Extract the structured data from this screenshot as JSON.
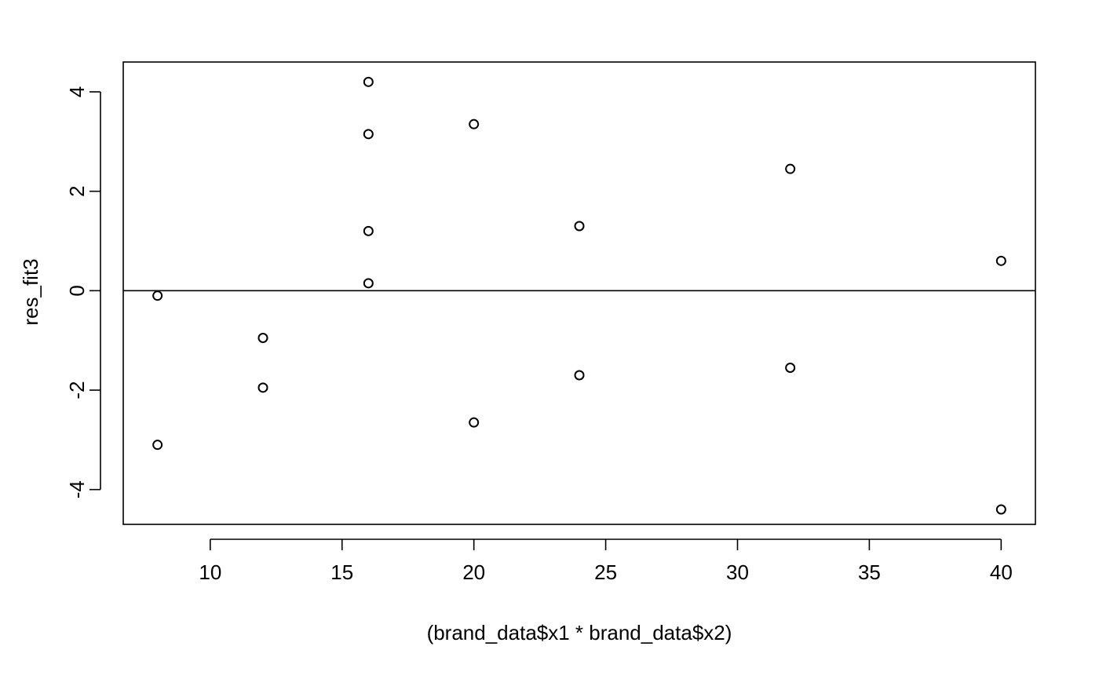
{
  "chart_data": {
    "type": "scatter",
    "title": "",
    "xlabel": "(brand_data$x1 * brand_data$x2)",
    "ylabel": "res_fit3",
    "xlim": [
      6.7,
      41.3
    ],
    "ylim": [
      -4.7,
      4.6
    ],
    "xticks": [
      10,
      15,
      20,
      25,
      30,
      35,
      40
    ],
    "yticks": [
      -4,
      -2,
      0,
      2,
      4
    ],
    "grid": false,
    "reference_line": {
      "orientation": "horizontal",
      "y": 0
    },
    "marker": "open-circle",
    "points": [
      {
        "x": 8,
        "y": -0.1
      },
      {
        "x": 8,
        "y": -3.1
      },
      {
        "x": 12,
        "y": -0.95
      },
      {
        "x": 12,
        "y": -1.95
      },
      {
        "x": 16,
        "y": 4.2
      },
      {
        "x": 16,
        "y": 3.15
      },
      {
        "x": 16,
        "y": 1.2
      },
      {
        "x": 16,
        "y": 0.15
      },
      {
        "x": 20,
        "y": 3.35
      },
      {
        "x": 20,
        "y": -2.65
      },
      {
        "x": 24,
        "y": 1.3
      },
      {
        "x": 24,
        "y": -1.7
      },
      {
        "x": 32,
        "y": 2.45
      },
      {
        "x": 32,
        "y": -1.55
      },
      {
        "x": 40,
        "y": 0.6
      },
      {
        "x": 40,
        "y": -4.4
      }
    ]
  }
}
